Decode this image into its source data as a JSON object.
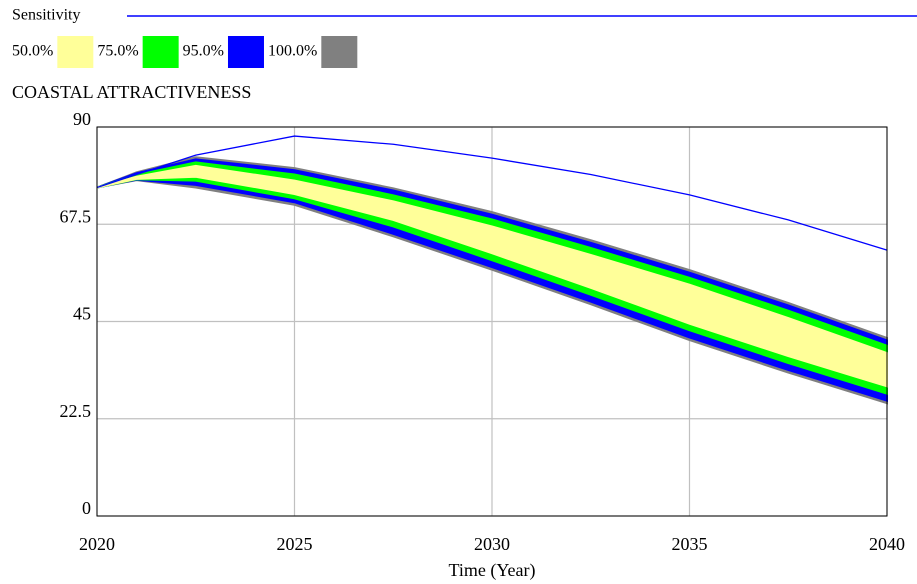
{
  "chart_data": {
    "type": "sensitivity",
    "title": "COASTAL ATTRACTIVENESS",
    "x_label": "Time (Year)",
    "x": [
      2020,
      2021,
      2022.5,
      2025,
      2027.5,
      2030,
      2032.5,
      2035,
      2037.5,
      2040
    ],
    "line": {
      "name": "Sensitivity",
      "color": "#0000ff",
      "values": [
        76,
        79,
        83.5,
        87.9,
        86,
        82.8,
        79,
        74.3,
        68.5,
        61.5
      ]
    },
    "series": [
      {
        "name": "50.0%",
        "color": "#ffff99",
        "upper": [
          76,
          78.5,
          81,
          77.6,
          72.8,
          67,
          60.4,
          53.5,
          45.8,
          37.7
        ],
        "lower": [
          76,
          78,
          78.5,
          74.5,
          68.5,
          60.8,
          52.8,
          44.5,
          37,
          30
        ]
      },
      {
        "name": "75.0%",
        "color": "#00ff00",
        "upper": [
          76,
          78.9,
          81.8,
          79,
          74.2,
          68.6,
          62,
          55.1,
          47.5,
          39.4
        ],
        "lower": [
          76,
          77.9,
          77.6,
          73.5,
          67,
          59.2,
          51.2,
          43,
          35.4,
          28.3
        ]
      },
      {
        "name": "95.0%",
        "color": "#0000ff",
        "upper": [
          76,
          79.3,
          82.5,
          80,
          75.3,
          69.7,
          63.2,
          56.3,
          48.7,
          40.6
        ],
        "lower": [
          76,
          77.8,
          76.6,
          72.6,
          65.3,
          57.6,
          49.6,
          41.3,
          33.8,
          26.7
        ]
      },
      {
        "name": "100.0%",
        "color": "#808080",
        "upper": [
          76,
          79.5,
          83,
          80.5,
          75.8,
          70.3,
          63.8,
          56.9,
          49.3,
          41.2
        ],
        "lower": [
          76,
          77.7,
          76,
          72,
          64.7,
          57,
          49,
          40.7,
          33.2,
          26.1
        ]
      }
    ],
    "xlim": [
      2020,
      2040
    ],
    "xticks": [
      2020,
      2025,
      2030,
      2035,
      2040
    ],
    "ylim": [
      0,
      90
    ],
    "yticks": [
      0,
      22.5,
      45,
      67.5,
      90
    ],
    "grid": true
  }
}
